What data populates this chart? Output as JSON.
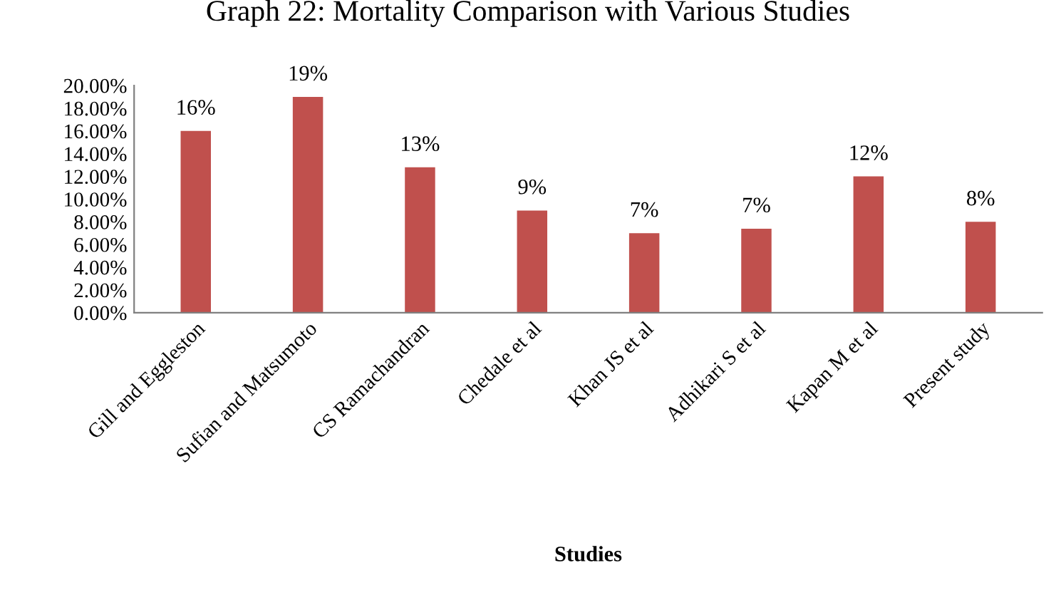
{
  "chart_data": {
    "type": "bar",
    "title": "Graph 22: Mortality Comparison with Various Studies",
    "xlabel": "Studies",
    "categories": [
      "Gill and Eggleston",
      "Sufian and Matsumoto",
      "CS Ramachandran",
      "Chedale et al",
      "Khan JS et al",
      "Adhikari S et al",
      "Kapan M et al",
      "Present study"
    ],
    "values": [
      16.0,
      19.0,
      12.8,
      9.0,
      7.0,
      7.4,
      12.0,
      8.0
    ],
    "value_labels": [
      "16%",
      "19%",
      "13%",
      "9%",
      "7%",
      "7%",
      "12%",
      "8%"
    ],
    "color": "#c0504d",
    "ylim": [
      0,
      20
    ],
    "yticks": [
      {
        "value": 0,
        "label": "0.00%"
      },
      {
        "value": 2,
        "label": "2.00%"
      },
      {
        "value": 4,
        "label": "4.00%"
      },
      {
        "value": 6,
        "label": "6.00%"
      },
      {
        "value": 8,
        "label": "8.00%"
      },
      {
        "value": 10,
        "label": "10.00%"
      },
      {
        "value": 12,
        "label": "12.00%"
      },
      {
        "value": 14,
        "label": "14.00%"
      },
      {
        "value": 16,
        "label": "16.00%"
      },
      {
        "value": 18,
        "label": "18.00%"
      },
      {
        "value": 20,
        "label": "20.00%"
      }
    ],
    "grid": false
  }
}
